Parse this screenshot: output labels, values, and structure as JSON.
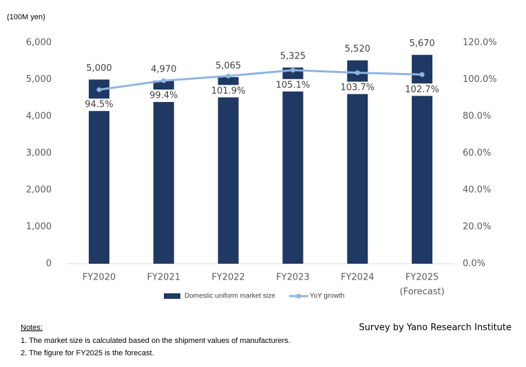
{
  "chart_data": {
    "type": "bar_line",
    "y_axis_label": "(100M yen)",
    "categories": [
      "FY2020",
      "FY2021",
      "FY2022",
      "FY2023",
      "FY2024",
      "FY2025"
    ],
    "category_note": "(Forecast)",
    "ylim": [
      0,
      6000
    ],
    "yticks": [
      0,
      {
        "value": 1000,
        "label": "1,000"
      },
      {
        "value": 2000,
        "label": "2,000"
      },
      {
        "value": 3000,
        "label": "3,000"
      },
      {
        "value": 4000,
        "label": "4,000"
      },
      {
        "value": 5000,
        "label": "5,000"
      },
      {
        "value": 6000,
        "label": "6,000"
      }
    ],
    "y2lim": [
      0,
      120
    ],
    "y2ticks": [
      {
        "value": 0,
        "label": "0.0%"
      },
      {
        "value": 20,
        "label": "20.0%"
      },
      {
        "value": 40,
        "label": "40.0%"
      },
      {
        "value": 60,
        "label": "60.0%"
      },
      {
        "value": 80,
        "label": "80.0%"
      },
      {
        "value": 100,
        "label": "100.0%"
      },
      {
        "value": 120,
        "label": "120.0%"
      }
    ],
    "grid": false,
    "series": [
      {
        "name": "Domestic uniform market size",
        "type": "bar",
        "color": "#1f3864",
        "values": [
          5000,
          4970,
          5065,
          5325,
          5520,
          5670
        ],
        "value_labels": [
          "5,000",
          "4,970",
          "5,065",
          "5,325",
          "5,520",
          "5,670"
        ]
      },
      {
        "name": "YoY growth",
        "type": "line",
        "axis": "y2",
        "color": "#8eb4e3",
        "values": [
          94.5,
          99.4,
          101.9,
          105.1,
          103.7,
          102.7
        ],
        "value_labels": [
          "94.5%",
          "99.4%",
          "101.9%",
          "105.1%",
          "103.7%",
          "102.7%"
        ]
      }
    ]
  },
  "notes": {
    "heading": "Notes:",
    "lines": [
      "1. The market size is calculated based on the shipment values of manufacturers.",
      "2. The figure for FY2025 is the forecast."
    ]
  },
  "source": "Survey by Yano Research Institute"
}
